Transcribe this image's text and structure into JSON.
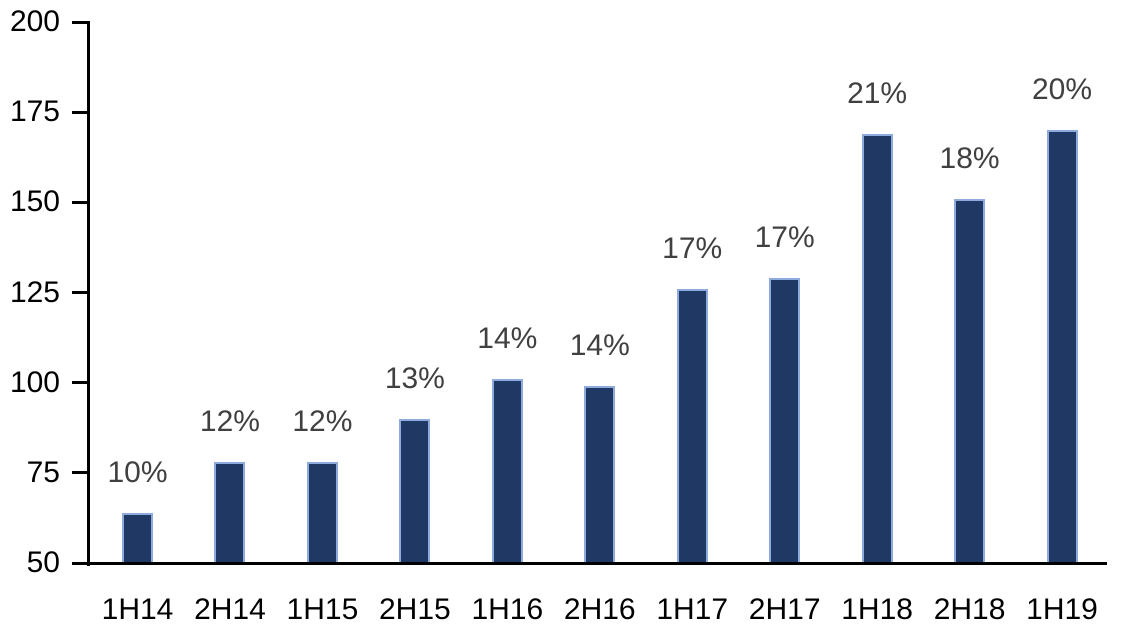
{
  "chart_data": {
    "type": "bar",
    "title": "",
    "xlabel": "",
    "ylabel": "",
    "categories": [
      "1H14",
      "2H14",
      "1H15",
      "2H15",
      "1H16",
      "2H16",
      "1H17",
      "2H17",
      "1H18",
      "2H18",
      "1H19"
    ],
    "values": [
      64,
      78,
      78,
      90,
      101,
      99,
      126,
      129,
      169,
      151,
      170
    ],
    "bar_labels": [
      "10%",
      "12%",
      "12%",
      "13%",
      "14%",
      "14%",
      "17%",
      "17%",
      "21%",
      "18%",
      "20%"
    ],
    "ylim": [
      50,
      200
    ],
    "yticks": [
      200,
      175,
      150,
      125,
      100,
      75,
      50
    ],
    "grid": false,
    "legend": "none",
    "colors": {
      "bar_fill": "#1F3864",
      "bar_border": "#8FAADC",
      "data_label": "#404040",
      "axis_label": "#000000",
      "axis_line": "#000000",
      "background": "#FFFFFF"
    }
  }
}
